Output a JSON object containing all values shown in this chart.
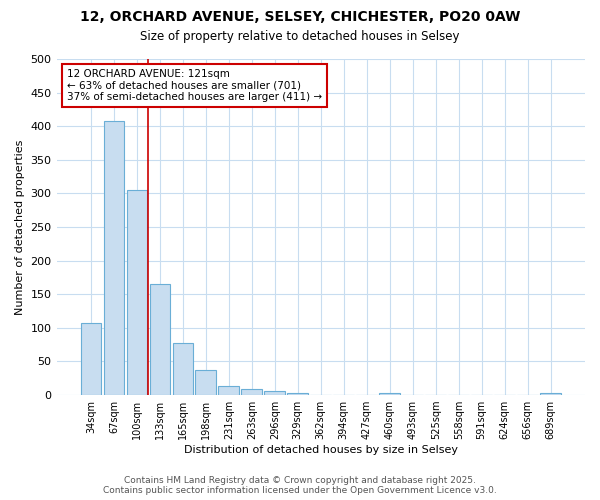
{
  "title_line1": "12, ORCHARD AVENUE, SELSEY, CHICHESTER, PO20 0AW",
  "title_line2": "Size of property relative to detached houses in Selsey",
  "xlabel": "Distribution of detached houses by size in Selsey",
  "ylabel": "Number of detached properties",
  "categories": [
    "34sqm",
    "67sqm",
    "100sqm",
    "133sqm",
    "165sqm",
    "198sqm",
    "231sqm",
    "263sqm",
    "296sqm",
    "329sqm",
    "362sqm",
    "394sqm",
    "427sqm",
    "460sqm",
    "493sqm",
    "525sqm",
    "558sqm",
    "591sqm",
    "624sqm",
    "656sqm",
    "689sqm"
  ],
  "values": [
    107,
    408,
    305,
    165,
    78,
    37,
    13,
    9,
    6,
    3,
    0,
    0,
    0,
    3,
    0,
    0,
    0,
    0,
    0,
    0,
    3
  ],
  "bar_color": "#c8ddf0",
  "bar_edge_color": "#6aaed6",
  "plot_bg_color": "#ffffff",
  "fig_bg_color": "#ffffff",
  "grid_color": "#c8ddf0",
  "red_line_index": 2.5,
  "annotation_text": "12 ORCHARD AVENUE: 121sqm\n← 63% of detached houses are smaller (701)\n37% of semi-detached houses are larger (411) →",
  "annotation_box_color": "#ffffff",
  "annotation_box_edge": "#cc0000",
  "footer_line1": "Contains HM Land Registry data © Crown copyright and database right 2025.",
  "footer_line2": "Contains public sector information licensed under the Open Government Licence v3.0.",
  "ylim": [
    0,
    500
  ],
  "yticks": [
    0,
    50,
    100,
    150,
    200,
    250,
    300,
    350,
    400,
    450,
    500
  ]
}
